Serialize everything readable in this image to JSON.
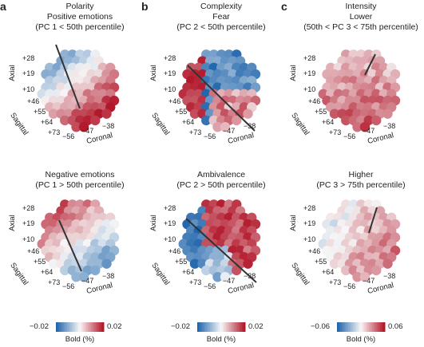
{
  "panels": [
    {
      "letter": "a",
      "column_title": "Polarity",
      "top_title": [
        "Positive emotions",
        "(PC 1 < 50th percentile)"
      ],
      "bottom_title": [
        "Negative emotions",
        "(PC 1 > 50th percentile)"
      ],
      "colorbar": {
        "min": "−0.02",
        "max": "0.02",
        "label": "Bold (%)"
      }
    },
    {
      "letter": "b",
      "column_title": "Complexity",
      "top_title": [
        "Fear",
        "(PC 2 < 50th percentile)"
      ],
      "bottom_title": [
        "Ambivalence",
        "(PC 2 > 50th percentile)"
      ],
      "colorbar": {
        "min": "−0.02",
        "max": "0.02",
        "label": "Bold (%)"
      }
    },
    {
      "letter": "c",
      "column_title": "Intensity",
      "top_title": [
        "Lower",
        "(50th < PC 3 < 75th percentile)"
      ],
      "bottom_title": [
        "Higher",
        "(PC 3 > 75th percentile)"
      ],
      "colorbar": {
        "min": "−0.06",
        "max": "0.06",
        "label": "Bold (%)"
      }
    }
  ],
  "axes": {
    "axial_label": "Axial",
    "axial_ticks": [
      "+28",
      "+19",
      "+10"
    ],
    "sagittal_label": "Sagittal",
    "sagittal_ticks": [
      "+46",
      "+55",
      "+64",
      "+73"
    ],
    "coronal_label": "Coronal",
    "coronal_ticks": [
      "−56",
      "−47",
      "−38"
    ]
  },
  "colors": {
    "negative": "#2166ac",
    "neutral": "#f7f7f7",
    "positive": "#b2182b"
  }
}
